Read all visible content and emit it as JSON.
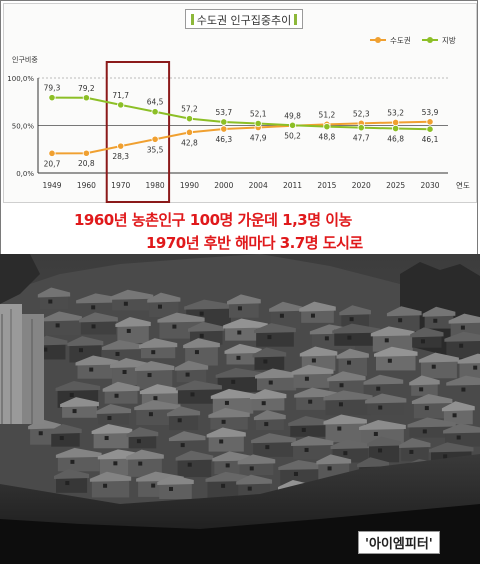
{
  "chart_data": {
    "type": "line",
    "title": "수도권 인구집중추이",
    "ylabel": "인구비중",
    "xlabel": "연도",
    "categories": [
      "1949",
      "1960",
      "1970",
      "1980",
      "1990",
      "2000",
      "2004",
      "2011",
      "2015",
      "2020",
      "2025",
      "2030"
    ],
    "y_ticks": [
      "100,0%",
      "50,0%",
      "0,0%"
    ],
    "ylim": [
      0,
      100
    ],
    "legend_position": "top-right",
    "series": [
      {
        "name": "수도권",
        "color": "#f0a030",
        "values": [
          20.7,
          20.8,
          28.3,
          35.5,
          42.8,
          46.3,
          47.9,
          49.8,
          51.2,
          52.3,
          53.2,
          53.9
        ],
        "labels": [
          "20,7",
          "20,8",
          "28,3",
          "35,5",
          "42,8",
          "46,3",
          "47,9",
          "49,8",
          "51,2",
          "52,3",
          "53,2",
          "53,9"
        ]
      },
      {
        "name": "지방",
        "color": "#8cbf26",
        "values": [
          79.3,
          79.2,
          71.7,
          64.5,
          57.2,
          53.7,
          52.1,
          50.2,
          48.8,
          47.7,
          46.8,
          46.1
        ],
        "labels": [
          "79,3",
          "79,2",
          "71,7",
          "64,5",
          "57,2",
          "53,7",
          "52,1",
          "50,2",
          "48,8",
          "47,7",
          "46,8",
          "46,1"
        ]
      }
    ],
    "highlight": {
      "from": "1970",
      "to": "1980",
      "color": "#8b1a1a"
    }
  },
  "captions": {
    "line1": "1960년 농촌인구 100명 가운데 1,3명 이농",
    "line2": "1970년 후반 해마다 3.7명 도시로"
  },
  "watermark": "'아이엠피터'",
  "colors": {
    "caption": "#e0191b",
    "title_accent": "#8db83a"
  }
}
